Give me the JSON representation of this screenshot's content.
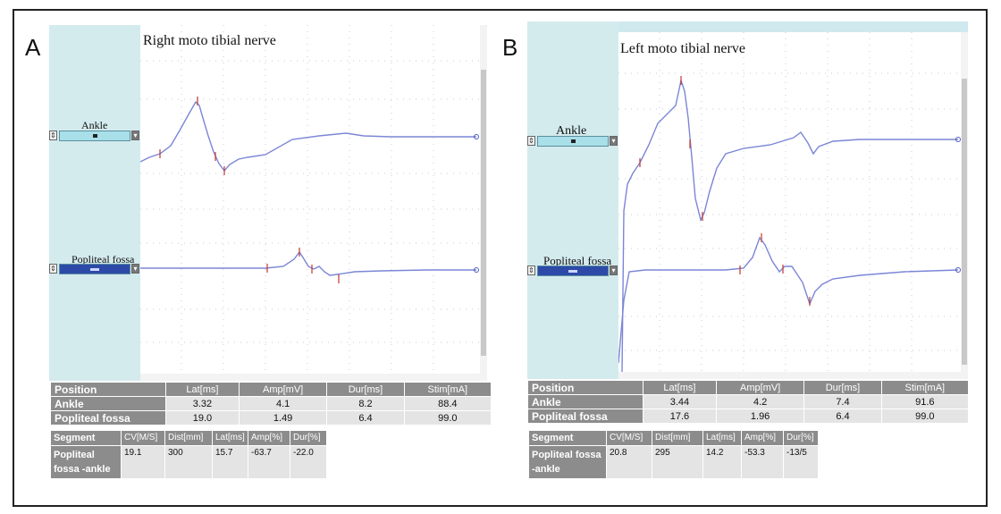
{
  "panels": [
    {
      "letter": "A",
      "title": "Right moto tibial nerve",
      "channels": [
        "Ankle",
        "Popliteal fossa"
      ],
      "table": {
        "headers": [
          "Position",
          "Lat[ms]",
          "Amp[mV]",
          "Dur[ms]",
          "Stim[mA]"
        ],
        "rows": [
          [
            "Ankle",
            "3.32",
            "4.1",
            "8.2",
            "88.4"
          ],
          [
            "Popliteal fossa",
            "19.0",
            "1.49",
            "6.4",
            "99.0"
          ]
        ]
      },
      "segment": {
        "headers": [
          "Segment",
          "CV[M/S]",
          "Dist[mm]",
          "Lat[ms]",
          "Amp[%]",
          "Dur[%]"
        ],
        "row": [
          "Popliteal fossa -ankle",
          "19.1",
          "300",
          "15.7",
          "-63.7",
          "-22.0"
        ]
      }
    },
    {
      "letter": "B",
      "title": "Left moto tibial nerve",
      "channels": [
        "Ankle",
        "Popliteal fossa"
      ],
      "table": {
        "headers": [
          "Position",
          "Lat[ms]",
          "Amp[mV]",
          "Dur[ms]",
          "Stim[mA]"
        ],
        "rows": [
          [
            "Ankle",
            "3.44",
            "4.2",
            "7.4",
            "91.6"
          ],
          [
            "Popliteal fossa",
            "17.6",
            "1.96",
            "6.4",
            "99.0"
          ]
        ]
      },
      "segment": {
        "headers": [
          "Segment",
          "CV[M/S]",
          "Dist[mm]",
          "Lat[ms]",
          "Amp[%]",
          "Dur[%]"
        ],
        "row": [
          "Popliteal fossa -ankle",
          "20.8",
          "295",
          "14.2",
          "-53.3",
          "-13/5"
        ]
      }
    }
  ],
  "colors": {
    "trace": "#7b86d6",
    "trace_marker": "#c0392b",
    "sidebar": "#d4ebee",
    "table_header": "#8c8c8c",
    "table_cell": "#e4e4e4",
    "cv_value": "#e23a3a"
  }
}
